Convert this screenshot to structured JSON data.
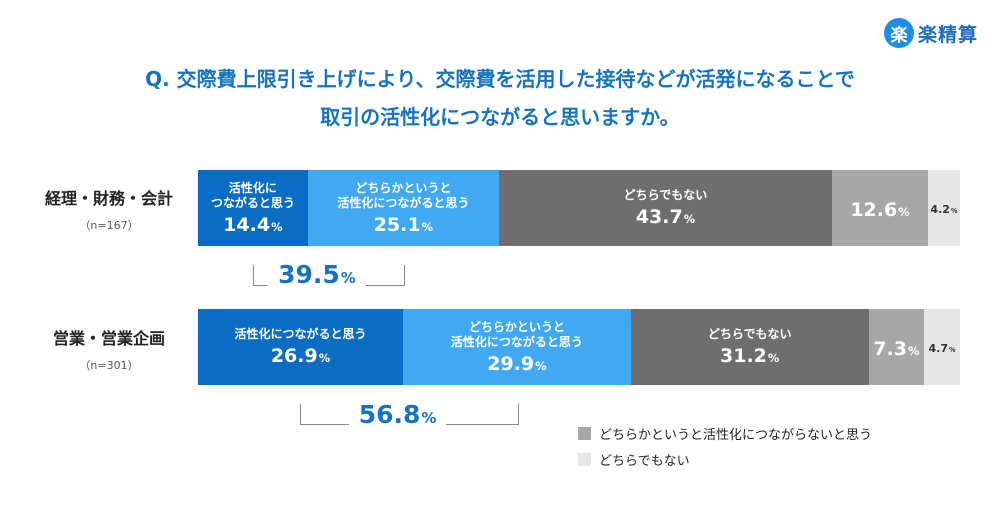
{
  "logo": {
    "icon": "楽",
    "text": "楽精算"
  },
  "title": {
    "line1": "Q. 交際費上限引き上げにより、交際費を活用した接待などが活発になることで",
    "line2": "取引の活性化につながると思いますか。"
  },
  "colors": {
    "seg1": "#0b6cc4",
    "seg2": "#41a9f1",
    "seg3": "#6e6e6e",
    "seg4": "#a7a7a7",
    "seg5": "#e6e6e6"
  },
  "rows": [
    {
      "name": "経理・財務・会計",
      "n": "（n=167）",
      "segments": [
        {
          "label": "活性化に\nつながると思う",
          "value": "14.4"
        },
        {
          "label": "どちらかというと\n活性化につながると思う",
          "value": "25.1"
        },
        {
          "label": "どちらでもない",
          "value": "43.7"
        },
        {
          "label": "",
          "value": "12.6"
        },
        {
          "label": "",
          "value": "4.2"
        }
      ],
      "total": "39.5"
    },
    {
      "name": "営業・営業企画",
      "n": "（n=301）",
      "segments": [
        {
          "label": "活性化につながると思う",
          "value": "26.9"
        },
        {
          "label": "どちらかというと\n活性化につながると思う",
          "value": "29.9"
        },
        {
          "label": "どちらでもない",
          "value": "31.2"
        },
        {
          "label": "",
          "value": "7.3"
        },
        {
          "label": "",
          "value": "4.7"
        }
      ],
      "total": "56.8"
    }
  ],
  "unit": "%",
  "legend": [
    {
      "label": "どちらかというと活性化につながらないと思う",
      "color": "#a7a7a7"
    },
    {
      "label": "どちらでもない",
      "color": "#e6e6e6"
    }
  ],
  "chart_data": {
    "type": "bar",
    "orientation": "horizontal-stacked",
    "title": "Q. 交際費上限引き上げにより、交際費を活用した接待などが活発になることで取引の活性化につながると思いますか。",
    "categories": [
      "経理・財務・会計（n=167）",
      "営業・営業企画（n=301）"
    ],
    "series": [
      {
        "name": "活性化につながると思う",
        "values": [
          14.4,
          26.9
        ]
      },
      {
        "name": "どちらかというと活性化につながると思う",
        "values": [
          25.1,
          29.9
        ]
      },
      {
        "name": "どちらでもない",
        "values": [
          43.7,
          31.2
        ]
      },
      {
        "name": "どちらかというと活性化につながらないと思う",
        "values": [
          12.6,
          7.3
        ]
      },
      {
        "name": "どちらでもない",
        "values": [
          4.2,
          4.7
        ]
      }
    ],
    "xlim": [
      0,
      100
    ],
    "legend_position": "bottom-right",
    "grid": false
  }
}
